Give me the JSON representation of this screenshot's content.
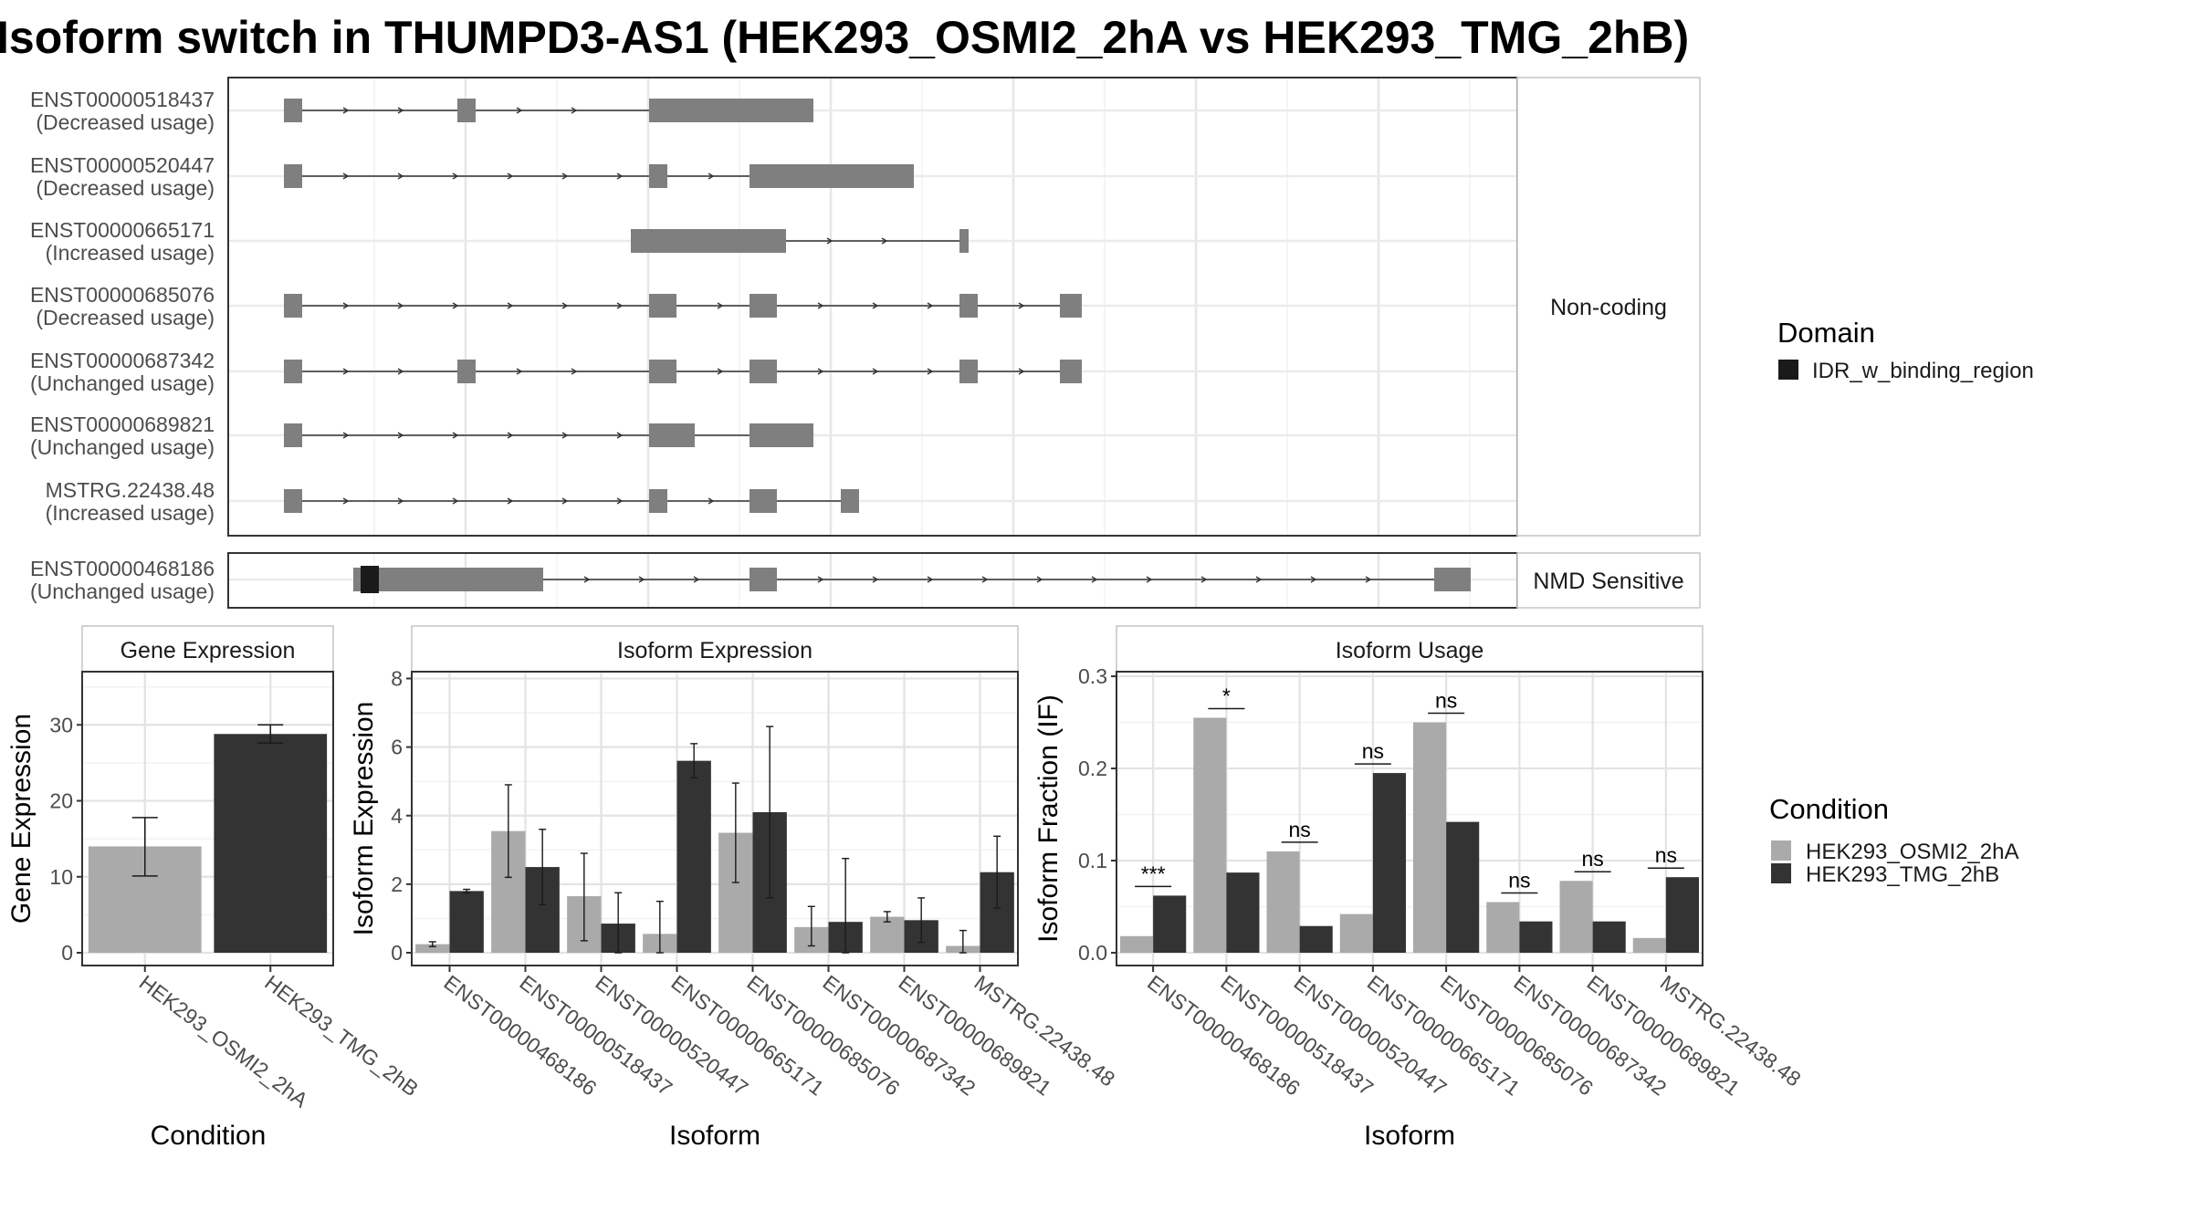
{
  "chart_data": [
    {
      "type": "gene-structure",
      "title": "Isoform switch in THUMPD3-AS1 (HEK293_OSMI2_2hA vs HEK293_TMG_2hB)",
      "facets": [
        {
          "label": "Non-coding",
          "isoforms": [
            {
              "id": "ENST00000518437",
              "usage": "(Decreased usage)",
              "exons": [
                [
                  0.0,
                  0.1
                ],
                [
                  0.95,
                  1.05
                ],
                [
                  2.0,
                  2.9
                ]
              ]
            },
            {
              "id": "ENST00000520447",
              "usage": "(Decreased usage)",
              "exons": [
                [
                  0.0,
                  0.1
                ],
                [
                  2.0,
                  2.1
                ],
                [
                  2.55,
                  3.45
                ]
              ]
            },
            {
              "id": "ENST00000665171",
              "usage": "(Increased usage)",
              "exons": [
                [
                  1.9,
                  2.75
                ],
                [
                  3.7,
                  3.75
                ]
              ]
            },
            {
              "id": "ENST00000685076",
              "usage": "(Decreased usage)",
              "exons": [
                [
                  0.0,
                  0.1
                ],
                [
                  2.0,
                  2.15
                ],
                [
                  2.55,
                  2.7
                ],
                [
                  3.7,
                  3.8
                ],
                [
                  4.25,
                  4.37
                ]
              ]
            },
            {
              "id": "ENST00000687342",
              "usage": "(Unchanged usage)",
              "exons": [
                [
                  0.0,
                  0.1
                ],
                [
                  0.95,
                  1.05
                ],
                [
                  2.0,
                  2.15
                ],
                [
                  2.55,
                  2.7
                ],
                [
                  3.7,
                  3.8
                ],
                [
                  4.25,
                  4.37
                ]
              ]
            },
            {
              "id": "ENST00000689821",
              "usage": "(Unchanged usage)",
              "exons": [
                [
                  0.0,
                  0.1
                ],
                [
                  2.0,
                  2.25
                ],
                [
                  2.55,
                  2.9
                ]
              ]
            },
            {
              "id": "MSTRG.22438.48",
              "usage": "(Increased usage)",
              "exons": [
                [
                  0.0,
                  0.1
                ],
                [
                  2.0,
                  2.1
                ],
                [
                  2.55,
                  2.7
                ],
                [
                  3.05,
                  3.15
                ]
              ]
            }
          ]
        },
        {
          "label": "NMD Sensitive",
          "isoforms": [
            {
              "id": "ENST00000468186",
              "usage": "(Unchanged usage)",
              "exons": [
                [
                  0.38,
                  1.42
                ],
                [
                  2.55,
                  2.7
                ],
                [
                  6.3,
                  6.5
                ]
              ],
              "domains": [
                [
                  0.42,
                  0.52
                ]
              ]
            }
          ]
        }
      ],
      "legend": {
        "title": "Domain",
        "items": [
          {
            "label": "IDR_w_binding_region",
            "color": "#1a1a1a"
          }
        ]
      }
    },
    {
      "type": "bar",
      "strip": "Gene Expression",
      "ylabel": "Gene Expression",
      "xlabel": "Condition",
      "ylim": [
        0,
        37
      ],
      "yticks": [
        0,
        10,
        20,
        30
      ],
      "categories": [
        "HEK293_OSMI2_2hA",
        "HEK293_TMG_2hB"
      ],
      "values": [
        14.0,
        28.8
      ],
      "errors": [
        [
          10.1,
          17.8
        ],
        [
          27.6,
          30.0
        ]
      ],
      "colors": [
        "#aaaaaa",
        "#333333"
      ]
    },
    {
      "type": "bar",
      "strip": "Isoform Expression",
      "ylabel": "Isoform Expression",
      "xlabel": "Isoform",
      "ylim": [
        0,
        8.2
      ],
      "yticks": [
        0,
        2,
        4,
        6,
        8
      ],
      "categories": [
        "ENST00000468186",
        "ENST00000518437",
        "ENST00000520447",
        "ENST00000665171",
        "ENST00000685076",
        "ENST00000687342",
        "ENST00000689821",
        "MSTRG.22438.48"
      ],
      "series": [
        {
          "name": "HEK293_OSMI2_2hA",
          "values": [
            0.25,
            3.55,
            1.65,
            0.55,
            3.5,
            0.75,
            1.05,
            0.2
          ],
          "errors": [
            [
              0.18,
              0.32
            ],
            [
              2.2,
              4.9
            ],
            [
              0.35,
              2.9
            ],
            [
              0.0,
              1.5
            ],
            [
              2.05,
              4.95
            ],
            [
              0.2,
              1.35
            ],
            [
              0.9,
              1.2
            ],
            [
              0.0,
              0.65
            ]
          ]
        },
        {
          "name": "HEK293_TMG_2hB",
          "values": [
            1.8,
            2.5,
            0.85,
            5.6,
            4.1,
            0.9,
            0.95,
            2.35
          ],
          "errors": [
            [
              1.75,
              1.85
            ],
            [
              1.4,
              3.6
            ],
            [
              0.0,
              1.75
            ],
            [
              5.1,
              6.1
            ],
            [
              1.6,
              6.6
            ],
            [
              0.0,
              2.75
            ],
            [
              0.3,
              1.6
            ],
            [
              1.3,
              3.4
            ]
          ]
        }
      ]
    },
    {
      "type": "bar",
      "strip": "Isoform Usage",
      "ylabel": "Isoform Fraction (IF)",
      "xlabel": "Isoform",
      "ylim": [
        0,
        0.305
      ],
      "yticks": [
        "0.0",
        "0.1",
        "0.2",
        "0.3"
      ],
      "categories": [
        "ENST00000468186",
        "ENST00000518437",
        "ENST00000520447",
        "ENST00000665171",
        "ENST00000685076",
        "ENST00000687342",
        "ENST00000689821",
        "MSTRG.22438.48"
      ],
      "series": [
        {
          "name": "HEK293_OSMI2_2hA",
          "values": [
            0.018,
            0.255,
            0.11,
            0.042,
            0.25,
            0.055,
            0.078,
            0.016
          ]
        },
        {
          "name": "HEK293_TMG_2hB",
          "values": [
            0.062,
            0.087,
            0.029,
            0.195,
            0.142,
            0.034,
            0.034,
            0.082
          ]
        }
      ],
      "significance": [
        "***",
        "*",
        "ns",
        "ns",
        "ns",
        "ns",
        "ns",
        "ns"
      ],
      "legend": {
        "title": "Condition",
        "items": [
          {
            "label": "HEK293_OSMI2_2hA",
            "color": "#aaaaaa"
          },
          {
            "label": "HEK293_TMG_2hB",
            "color": "#333333"
          }
        ]
      }
    }
  ]
}
